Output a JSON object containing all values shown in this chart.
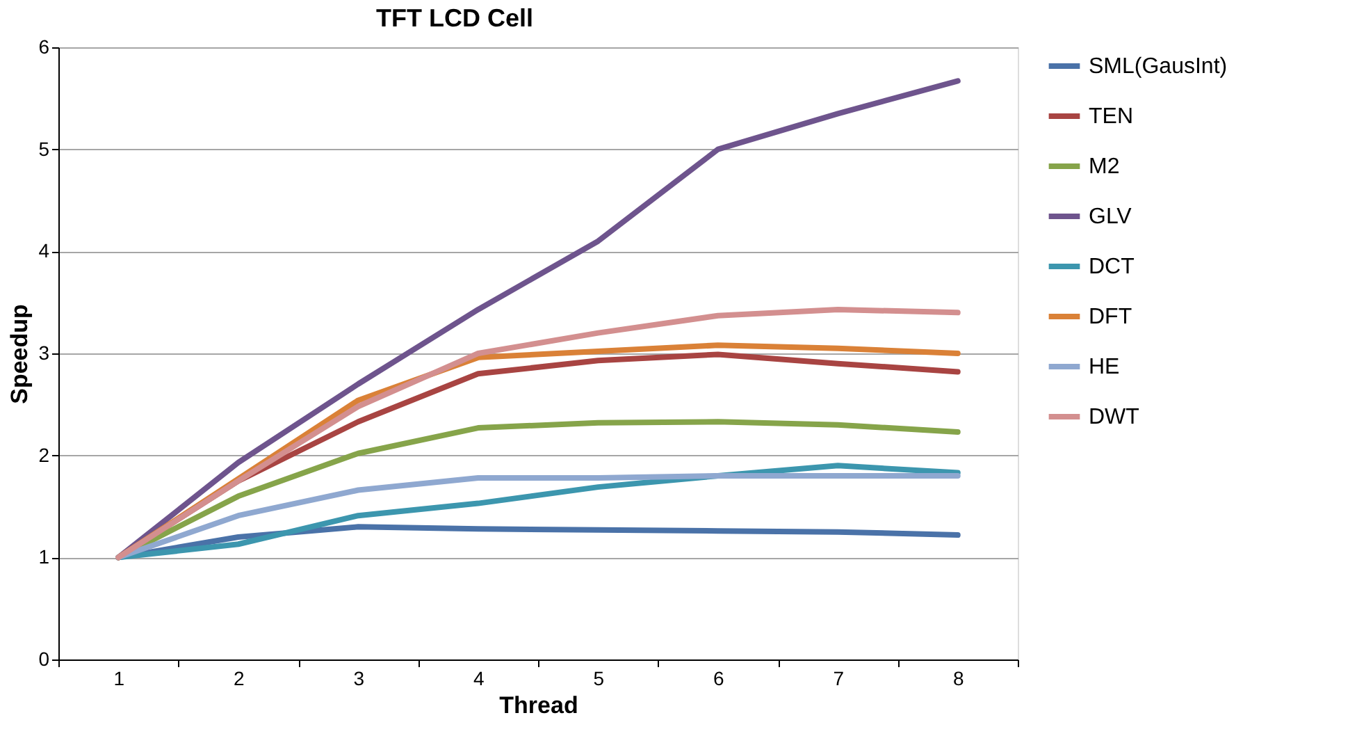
{
  "chart_data": {
    "type": "line",
    "title": "TFT LCD Cell",
    "xlabel": "Thread",
    "ylabel": "Speedup",
    "categories": [
      "1",
      "2",
      "3",
      "4",
      "5",
      "6",
      "7",
      "8"
    ],
    "series": [
      {
        "name": "SML(GausInt)",
        "color": "#4a72a8",
        "values": [
          1,
          1.2,
          1.3,
          1.28,
          1.27,
          1.26,
          1.25,
          1.22
        ]
      },
      {
        "name": "TEN",
        "color": "#a84442",
        "values": [
          1,
          1.75,
          2.33,
          2.8,
          2.93,
          2.99,
          2.9,
          2.82
        ]
      },
      {
        "name": "M2",
        "color": "#86a44a",
        "values": [
          1,
          1.6,
          2.02,
          2.27,
          2.32,
          2.33,
          2.3,
          2.23
        ]
      },
      {
        "name": "GLV",
        "color": "#6e548d",
        "values": [
          1,
          1.93,
          2.7,
          3.43,
          4.1,
          5.0,
          5.35,
          5.67
        ]
      },
      {
        "name": "DCT",
        "color": "#3c96ae",
        "values": [
          1,
          1.13,
          1.41,
          1.53,
          1.69,
          1.8,
          1.9,
          1.83
        ]
      },
      {
        "name": "DFT",
        "color": "#da8137",
        "values": [
          1,
          1.77,
          2.54,
          2.96,
          3.02,
          3.08,
          3.05,
          3.0
        ]
      },
      {
        "name": "HE",
        "color": "#8fa8d0",
        "values": [
          1,
          1.41,
          1.66,
          1.78,
          1.78,
          1.8,
          1.8,
          1.8
        ]
      },
      {
        "name": "DWT",
        "color": "#d38f8f",
        "values": [
          1,
          1.75,
          2.48,
          3.0,
          3.2,
          3.37,
          3.43,
          3.4
        ]
      }
    ],
    "ylim": [
      0,
      6
    ],
    "yticks": [
      0,
      1,
      2,
      3,
      4,
      5,
      6
    ],
    "grid": "y",
    "legend": "right",
    "marker": "none",
    "line_style": "solid"
  }
}
